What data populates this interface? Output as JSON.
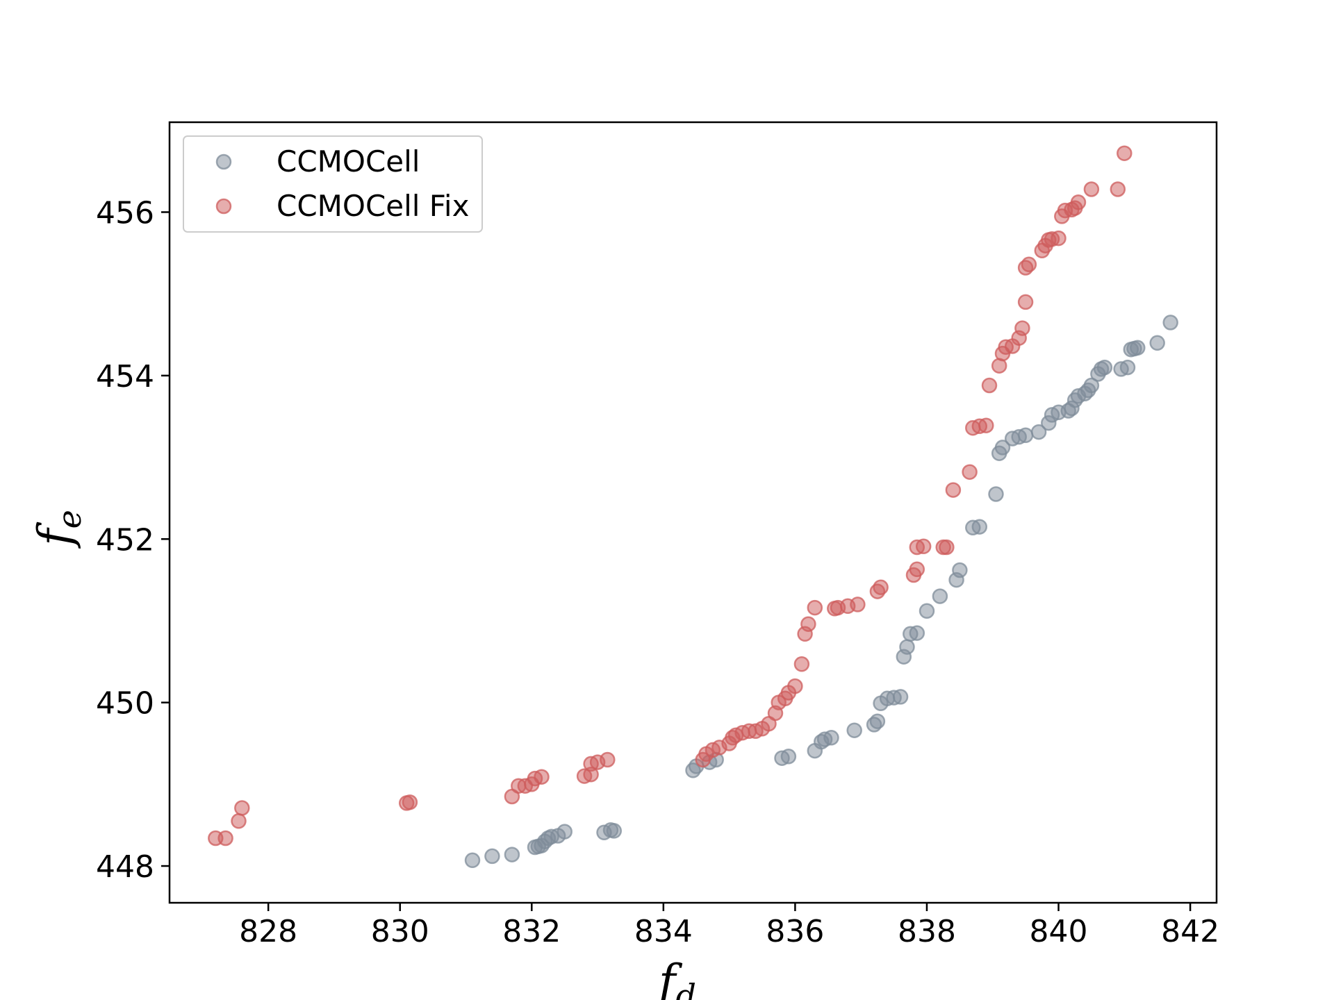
{
  "chart_data": {
    "type": "scatter",
    "xlabel": "f",
    "xlabel_sub": "d",
    "ylabel": "f",
    "ylabel_sub": "e",
    "xlim": [
      826.5,
      842.4
    ],
    "ylim": [
      447.55,
      457.1
    ],
    "xticks": [
      828,
      830,
      832,
      834,
      836,
      838,
      840,
      842
    ],
    "yticks": [
      448,
      450,
      452,
      454,
      456
    ],
    "grid": false,
    "legend_position": "top-left",
    "series": [
      {
        "name": "CCMOCell",
        "color": "#7f8c99",
        "points": [
          [
            831.1,
            448.07
          ],
          [
            831.4,
            448.12
          ],
          [
            831.7,
            448.14
          ],
          [
            832.05,
            448.23
          ],
          [
            832.1,
            448.24
          ],
          [
            832.15,
            448.25
          ],
          [
            832.2,
            448.3
          ],
          [
            832.25,
            448.34
          ],
          [
            832.3,
            448.36
          ],
          [
            832.4,
            448.37
          ],
          [
            832.5,
            448.42
          ],
          [
            833.1,
            448.41
          ],
          [
            833.25,
            448.43
          ],
          [
            833.2,
            448.44
          ],
          [
            834.45,
            449.17
          ],
          [
            834.5,
            449.22
          ],
          [
            834.7,
            449.27
          ],
          [
            834.8,
            449.3
          ],
          [
            835.8,
            449.32
          ],
          [
            835.9,
            449.34
          ],
          [
            836.3,
            449.41
          ],
          [
            836.4,
            449.52
          ],
          [
            836.45,
            449.55
          ],
          [
            836.55,
            449.57
          ],
          [
            836.9,
            449.66
          ],
          [
            837.2,
            449.73
          ],
          [
            837.25,
            449.77
          ],
          [
            837.3,
            449.99
          ],
          [
            837.4,
            450.05
          ],
          [
            837.5,
            450.06
          ],
          [
            837.6,
            450.07
          ],
          [
            837.65,
            450.56
          ],
          [
            837.7,
            450.68
          ],
          [
            837.75,
            450.84
          ],
          [
            837.85,
            450.85
          ],
          [
            838.0,
            451.12
          ],
          [
            838.2,
            451.3
          ],
          [
            838.45,
            451.5
          ],
          [
            838.5,
            451.62
          ],
          [
            838.7,
            452.14
          ],
          [
            838.8,
            452.15
          ],
          [
            839.05,
            452.55
          ],
          [
            839.1,
            453.05
          ],
          [
            839.15,
            453.12
          ],
          [
            839.3,
            453.23
          ],
          [
            839.4,
            453.25
          ],
          [
            839.5,
            453.27
          ],
          [
            839.7,
            453.31
          ],
          [
            839.85,
            453.42
          ],
          [
            839.9,
            453.52
          ],
          [
            840.0,
            453.55
          ],
          [
            840.15,
            453.57
          ],
          [
            840.2,
            453.6
          ],
          [
            840.25,
            453.7
          ],
          [
            840.3,
            453.75
          ],
          [
            840.4,
            453.78
          ],
          [
            840.45,
            453.82
          ],
          [
            840.5,
            453.88
          ],
          [
            840.6,
            454.02
          ],
          [
            840.65,
            454.08
          ],
          [
            840.7,
            454.1
          ],
          [
            840.95,
            454.08
          ],
          [
            841.05,
            454.1
          ],
          [
            841.1,
            454.32
          ],
          [
            841.15,
            454.33
          ],
          [
            841.2,
            454.34
          ],
          [
            841.5,
            454.4
          ],
          [
            841.7,
            454.65
          ]
        ]
      },
      {
        "name": "CCMOCell Fix",
        "color": "#cd5c5c",
        "points": [
          [
            827.2,
            448.34
          ],
          [
            827.35,
            448.34
          ],
          [
            827.55,
            448.55
          ],
          [
            827.6,
            448.71
          ],
          [
            830.1,
            448.77
          ],
          [
            830.15,
            448.78
          ],
          [
            831.7,
            448.85
          ],
          [
            831.8,
            448.98
          ],
          [
            831.9,
            448.98
          ],
          [
            832.0,
            449.0
          ],
          [
            832.05,
            449.07
          ],
          [
            832.15,
            449.09
          ],
          [
            832.8,
            449.1
          ],
          [
            832.9,
            449.12
          ],
          [
            832.9,
            449.25
          ],
          [
            833.0,
            449.27
          ],
          [
            833.15,
            449.3
          ],
          [
            834.6,
            449.3
          ],
          [
            834.65,
            449.37
          ],
          [
            834.75,
            449.42
          ],
          [
            834.85,
            449.45
          ],
          [
            835.0,
            449.5
          ],
          [
            835.05,
            449.57
          ],
          [
            835.1,
            449.6
          ],
          [
            835.2,
            449.63
          ],
          [
            835.3,
            449.65
          ],
          [
            835.4,
            449.65
          ],
          [
            835.5,
            449.68
          ],
          [
            835.6,
            449.74
          ],
          [
            835.7,
            449.87
          ],
          [
            835.75,
            450.0
          ],
          [
            835.85,
            450.05
          ],
          [
            835.9,
            450.12
          ],
          [
            836.0,
            450.2
          ],
          [
            836.1,
            450.47
          ],
          [
            836.15,
            450.84
          ],
          [
            836.2,
            450.96
          ],
          [
            836.3,
            451.16
          ],
          [
            836.6,
            451.15
          ],
          [
            836.65,
            451.16
          ],
          [
            836.8,
            451.18
          ],
          [
            836.95,
            451.2
          ],
          [
            837.25,
            451.36
          ],
          [
            837.3,
            451.41
          ],
          [
            837.8,
            451.56
          ],
          [
            837.85,
            451.63
          ],
          [
            837.85,
            451.9
          ],
          [
            837.95,
            451.91
          ],
          [
            838.25,
            451.9
          ],
          [
            838.3,
            451.9
          ],
          [
            838.4,
            452.6
          ],
          [
            838.65,
            452.82
          ],
          [
            838.7,
            453.36
          ],
          [
            838.8,
            453.38
          ],
          [
            838.9,
            453.39
          ],
          [
            838.95,
            453.88
          ],
          [
            839.1,
            454.12
          ],
          [
            839.15,
            454.27
          ],
          [
            839.2,
            454.35
          ],
          [
            839.3,
            454.36
          ],
          [
            839.4,
            454.46
          ],
          [
            839.45,
            454.58
          ],
          [
            839.5,
            454.9
          ],
          [
            839.5,
            455.32
          ],
          [
            839.55,
            455.36
          ],
          [
            839.75,
            455.53
          ],
          [
            839.8,
            455.59
          ],
          [
            839.85,
            455.66
          ],
          [
            839.9,
            455.67
          ],
          [
            840.0,
            455.68
          ],
          [
            840.05,
            455.95
          ],
          [
            840.1,
            456.02
          ],
          [
            840.2,
            456.03
          ],
          [
            840.25,
            456.05
          ],
          [
            840.3,
            456.12
          ],
          [
            840.5,
            456.28
          ],
          [
            840.9,
            456.28
          ],
          [
            841.0,
            456.72
          ]
        ]
      }
    ]
  }
}
